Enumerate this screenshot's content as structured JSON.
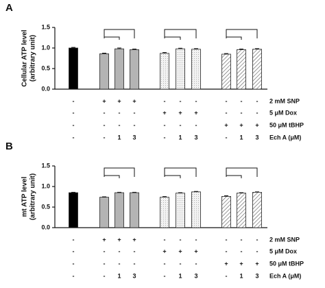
{
  "chart_data": [
    {
      "type": "bar",
      "panel": "A",
      "ylabel": [
        "Cellular ATP level",
        "(arbitrary unit)"
      ],
      "ylim": [
        0,
        1.5
      ],
      "yticks": [
        {
          "value": 0,
          "label": "0.0"
        },
        0.5,
        {
          "value": 1,
          "label": "1.0"
        },
        1.5
      ],
      "values": [
        1.0,
        0.86,
        0.98,
        0.96,
        0.87,
        0.98,
        0.97,
        0.85,
        0.96,
        0.97
      ],
      "errors": [
        0.015,
        0.015,
        0.02,
        0.015,
        0.02,
        0.015,
        0.015,
        0.015,
        0.015,
        0.015
      ],
      "colors": [
        "#000000",
        "#b4b4b4",
        "#b4b4b4",
        "#b4b4b4",
        "dots",
        "dots",
        "dots",
        "hatch",
        "hatch",
        "hatch"
      ],
      "conditions": [
        {
          "label": "2 mM SNP",
          "marks": [
            "-",
            "+",
            "+",
            "+",
            "-",
            "-",
            "-",
            "-",
            "-",
            "-"
          ]
        },
        {
          "label": "5 μM Dox",
          "marks": [
            "-",
            "-",
            "-",
            "-",
            "+",
            "+",
            "+",
            "-",
            "-",
            "-"
          ]
        },
        {
          "label": "50 μM tBHP",
          "marks": [
            "-",
            "-",
            "-",
            "-",
            "-",
            "-",
            "-",
            "+",
            "+",
            "+"
          ]
        },
        {
          "label": "Ech A (μM)",
          "marks": [
            "-",
            "-",
            "1",
            "3",
            "-",
            "1",
            "3",
            "-",
            "1",
            "3"
          ]
        }
      ]
    },
    {
      "type": "bar",
      "panel": "B",
      "ylabel": [
        "mt ATP level",
        "(arbitrary unit)"
      ],
      "ylim": [
        0,
        1.5
      ],
      "yticks": [
        {
          "value": 0,
          "label": "0.0"
        },
        0.5,
        {
          "value": 1,
          "label": "1.0"
        },
        1.5
      ],
      "values": [
        0.85,
        0.74,
        0.85,
        0.85,
        0.74,
        0.84,
        0.87,
        0.76,
        0.84,
        0.86
      ],
      "errors": [
        0.01,
        0.01,
        0.01,
        0.01,
        0.015,
        0.01,
        0.01,
        0.015,
        0.01,
        0.01
      ],
      "colors": [
        "#000000",
        "#b4b4b4",
        "#b4b4b4",
        "#b4b4b4",
        "dots",
        "dots",
        "dots",
        "hatch",
        "hatch",
        "hatch"
      ],
      "conditions": [
        {
          "label": "2 mM SNP",
          "marks": [
            "-",
            "+",
            "+",
            "+",
            "-",
            "-",
            "-",
            "-",
            "-",
            "-"
          ]
        },
        {
          "label": "5 μM Dox",
          "marks": [
            "-",
            "-",
            "-",
            "-",
            "+",
            "+",
            "+",
            "-",
            "-",
            "-"
          ]
        },
        {
          "label": "50 μM tBHP",
          "marks": [
            "-",
            "-",
            "-",
            "-",
            "-",
            "-",
            "-",
            "+",
            "+",
            "+"
          ]
        },
        {
          "label": "Ech A (μM)",
          "marks": [
            "-",
            "-",
            "1",
            "3",
            "-",
            "1",
            "3",
            "-",
            "1",
            "3"
          ]
        }
      ]
    }
  ]
}
